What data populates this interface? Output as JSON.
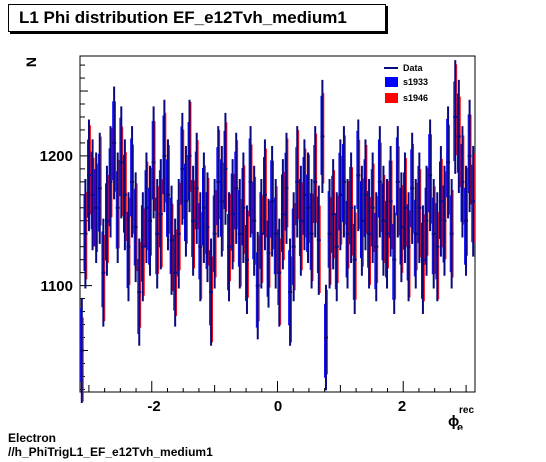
{
  "chart_data": {
    "type": "scatter",
    "title": "L1 Phi distribution EF_e12Tvh_medium1",
    "ylabel": "N",
    "xlabel_main": "ϕ",
    "xlabel_sup": "rec",
    "xlabel_sub": "e",
    "xlim": [
      -3.14159,
      3.14159
    ],
    "ylim": [
      1018,
      1277
    ],
    "x_ticks": [
      -2,
      0,
      2
    ],
    "y_ticks": [
      1100,
      1200
    ],
    "x_tick_labels": [
      "-2",
      "0",
      "2"
    ],
    "y_tick_labels": [
      "1100",
      "1200"
    ],
    "legend_position": "top-right",
    "legend": [
      "Data",
      "s1933",
      "s1946"
    ],
    "series": [
      {
        "name": "Data",
        "color": "#0a0a80",
        "values": [
          1050,
          1140,
          1185,
          1170,
          1160,
          1175,
          1110,
          1150,
          1180,
          1210,
          1160,
          1195,
          1170,
          1130,
          1180,
          1145,
          1095,
          1130,
          1160,
          1150,
          1195,
          1140,
          1155,
          1200,
          1170,
          1135,
          1110,
          1140,
          1190,
          1165,
          1200,
          1150,
          1175,
          1130,
          1160,
          1145,
          1095,
          1140,
          1180,
          1165,
          1190,
          1130,
          1155,
          1175,
          1140,
          1160,
          1120,
          1180,
          1150,
          1100,
          1140,
          1170,
          1125,
          1165,
          1140,
          1110,
          1155,
          1175,
          1095,
          1130,
          1180,
          1150,
          1170,
          1160,
          1140,
          1180,
          1135,
          1215,
          1060,
          1140,
          1155,
          1130,
          1170,
          1180,
          1140,
          1160,
          1120,
          1185,
          1150,
          1170,
          1140,
          1160,
          1130,
          1180,
          1150,
          1140,
          1165,
          1120,
          1180,
          1145,
          1160,
          1130,
          1175,
          1140,
          1160,
          1120,
          1150,
          1185,
          1140,
          1130,
          1165,
          1150,
          1195,
          1140,
          1230,
          1215,
          1180,
          1150,
          1200,
          1165
        ]
      }
    ]
  },
  "footer": {
    "line1": "Electron",
    "line2": "//h_PhiTrigL1_EF_e12Tvh_medium1"
  },
  "colors": {
    "data": "#0a0a80",
    "s1933": "#0000ff",
    "s1946": "#ff0000"
  }
}
